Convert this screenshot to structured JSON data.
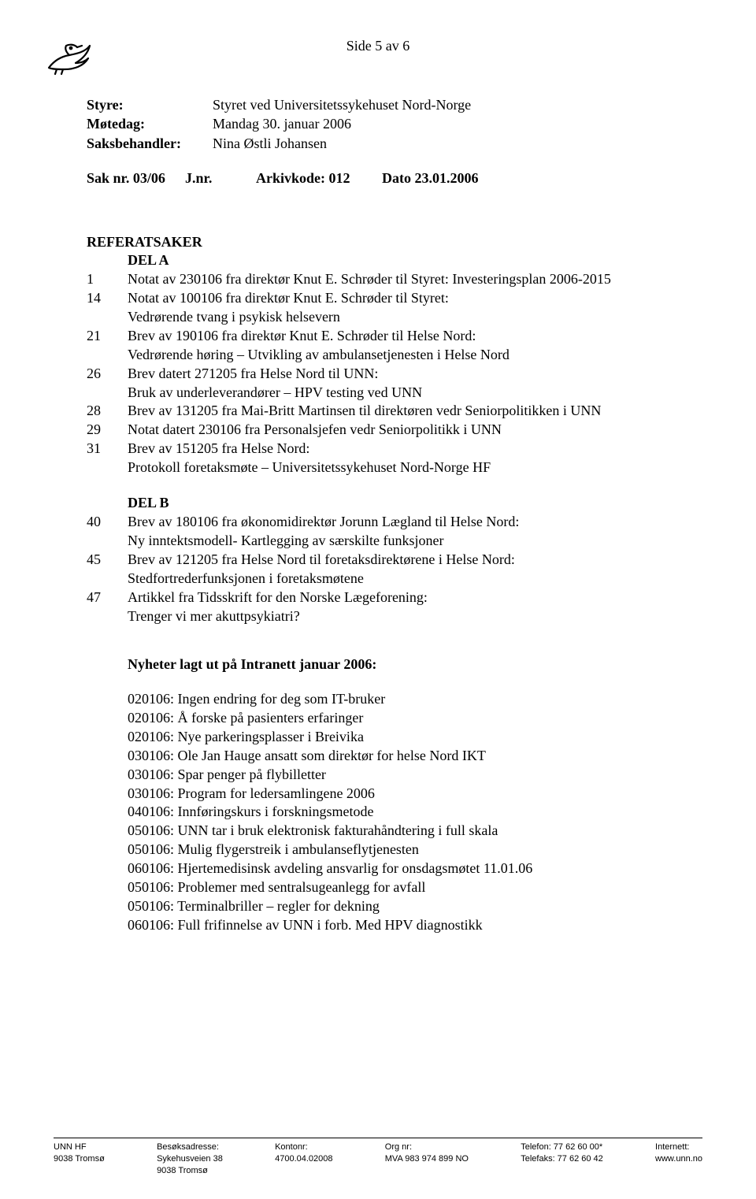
{
  "pageHeader": "Side 5 av 6",
  "meta": {
    "styreLabel": "Styre:",
    "styreValue": "Styret ved Universitetssykehuset Nord-Norge",
    "motedagLabel": "Møtedag:",
    "motedagValue": "Mandag 30. januar 2006",
    "saksbehandlerLabel": "Saksbehandler:",
    "saksbehandlerValue": "Nina Østli Johansen"
  },
  "sakRow": {
    "sak": "Sak nr. 03/06",
    "jnr": "J.nr.",
    "arkiv": "Arkivkode: 012",
    "dato": "Dato 23.01.2006"
  },
  "sectionTitle": "REFERATSAKER",
  "delA": "DEL A",
  "itemsA": [
    {
      "num": "1",
      "text": "Notat av 230106 fra direktør Knut E. Schrøder til Styret: Investeringsplan 2006-2015"
    },
    {
      "num": "14",
      "text": "Notat av 100106 fra direktør Knut E. Schrøder til Styret:\nVedrørende tvang i psykisk helsevern"
    },
    {
      "num": "21",
      "text": "Brev av 190106 fra direktør Knut E. Schrøder til Helse Nord:\nVedrørende høring – Utvikling av ambulansetjenesten i Helse Nord"
    },
    {
      "num": "26",
      "text": "Brev datert 271205 fra Helse Nord til UNN:\nBruk av underleverandører – HPV testing ved UNN"
    },
    {
      "num": "28",
      "text": "Brev av 131205 fra Mai-Britt Martinsen til direktøren vedr Seniorpolitikken i UNN"
    },
    {
      "num": "29",
      "text": "Notat datert 230106  fra Personalsjefen vedr Seniorpolitikk i UNN"
    },
    {
      "num": "31",
      "text": "Brev av 151205 fra Helse Nord:\nProtokoll foretaksmøte – Universitetssykehuset Nord-Norge HF"
    }
  ],
  "delB": "DEL B",
  "itemsB": [
    {
      "num": "40",
      "text": "Brev av 180106 fra økonomidirektør Jorunn Lægland til Helse Nord:\nNy inntektsmodell- Kartlegging av særskilte funksjoner"
    },
    {
      "num": "45",
      "text": "Brev av 121205 fra Helse Nord til foretaksdirektørene i Helse Nord:\nStedfortrederfunksjonen i foretaksmøtene"
    },
    {
      "num": "47",
      "text": "Artikkel fra Tidsskrift for den Norske Lægeforening:\nTrenger vi mer akuttpsykiatri?"
    }
  ],
  "newsTitle": "Nyheter lagt ut på Intranett januar 2006:",
  "news": [
    "020106: Ingen endring for deg som IT-bruker",
    "020106: Å forske på pasienters erfaringer",
    "020106: Nye parkeringsplasser i Breivika",
    "030106: Ole Jan Hauge ansatt som direktør for helse Nord IKT",
    "030106: Spar penger på flybilletter",
    "030106: Program for ledersamlingene 2006",
    "040106: Innføringskurs i forskningsmetode",
    "050106: UNN tar i bruk elektronisk fakturahåndtering i full skala",
    "050106: Mulig flygerstreik i ambulanseflytjenesten",
    "060106: Hjertemedisinsk avdeling ansvarlig for onsdagsmøtet 11.01.06",
    "050106: Problemer med sentralsugeanlegg for avfall",
    "050106: Terminalbriller – regler for dekning",
    "060106: Full frifinnelse av UNN i forb. Med HPV diagnostikk"
  ],
  "footer": {
    "col1": [
      "UNN HF",
      "9038 Tromsø"
    ],
    "col2": [
      "Besøksadresse:",
      "Sykehusveien 38",
      "9038 Tromsø"
    ],
    "col3": [
      "Kontonr:",
      "4700.04.02008"
    ],
    "col4": [
      "Org nr:",
      "MVA 983 974 899 NO"
    ],
    "col5": [
      "Telefon: 77 62 60 00*",
      "Telefaks: 77 62 60 42"
    ],
    "col6": [
      "Internett:",
      "www.unn.no"
    ]
  }
}
